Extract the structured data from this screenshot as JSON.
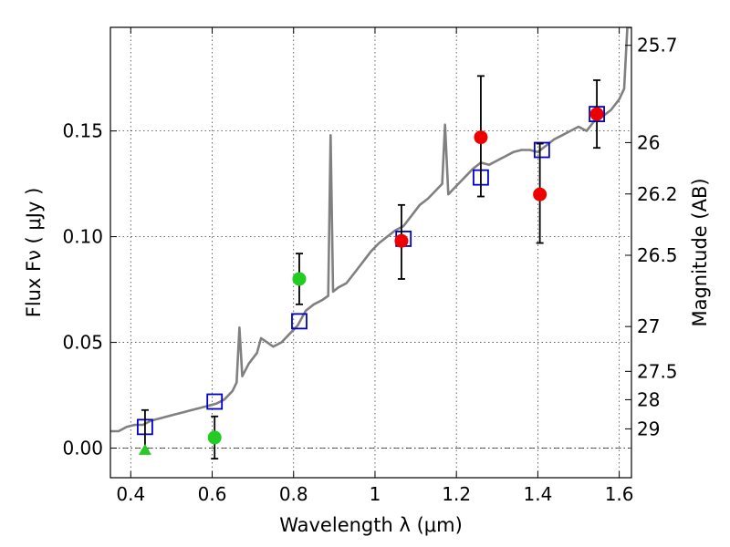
{
  "chart_data": {
    "type": "scatter",
    "xlabel": "Wavelength  λ (μm)",
    "ylabel": "Flux  Fν ( μJy )",
    "ylabel_right": "Magnitude (AB)",
    "xlim": [
      0.35,
      1.63
    ],
    "ylim": [
      -0.014,
      0.199
    ],
    "x_ticks": [
      0.4,
      0.6,
      0.8,
      1.0,
      1.2,
      1.4,
      1.6
    ],
    "x_tick_labels": [
      "0.4",
      "0.6",
      "0.8",
      "1",
      "1.2",
      "1.4",
      "1.6"
    ],
    "y_ticks": [
      0.0,
      0.05,
      0.1,
      0.15
    ],
    "y_tick_labels": [
      "0.00",
      "0.05",
      "0.10",
      "0.15"
    ],
    "right_ticks": [
      {
        "label": "25.7",
        "flux": 0.1905
      },
      {
        "label": "26",
        "flux": 0.1445
      },
      {
        "label": "26.2",
        "flux": 0.1202
      },
      {
        "label": "26.5",
        "flux": 0.0912
      },
      {
        "label": "27",
        "flux": 0.0575
      },
      {
        "label": "27.5",
        "flux": 0.0363
      },
      {
        "label": "28",
        "flux": 0.0229
      },
      {
        "label": "29",
        "flux": 0.0091
      }
    ],
    "grid": true,
    "colors": {
      "model": "#808080",
      "model_photometry": "#0000cc",
      "red_points": "#ee0000",
      "green_points": "#22cc22",
      "errorbar": "#000000",
      "zero_line": "#000000"
    },
    "series": [
      {
        "kind": "model-spectrum-line",
        "x": [
          0.35,
          0.37,
          0.39,
          0.41,
          0.43,
          0.45,
          0.47,
          0.49,
          0.51,
          0.53,
          0.55,
          0.57,
          0.59,
          0.61,
          0.63,
          0.65,
          0.66,
          0.667,
          0.674,
          0.69,
          0.71,
          0.72,
          0.75,
          0.77,
          0.79,
          0.81,
          0.83,
          0.85,
          0.87,
          0.885,
          0.891,
          0.897,
          0.91,
          0.93,
          0.95,
          0.97,
          0.99,
          1.01,
          1.03,
          1.05,
          1.07,
          1.09,
          1.11,
          1.13,
          1.15,
          1.165,
          1.172,
          1.18,
          1.2,
          1.22,
          1.24,
          1.26,
          1.28,
          1.3,
          1.32,
          1.34,
          1.36,
          1.38,
          1.4,
          1.42,
          1.44,
          1.46,
          1.48,
          1.5,
          1.52,
          1.54,
          1.56,
          1.58,
          1.6,
          1.612,
          1.62,
          1.63
        ],
        "y": [
          0.008,
          0.008,
          0.01,
          0.011,
          0.011,
          0.013,
          0.014,
          0.015,
          0.016,
          0.017,
          0.018,
          0.019,
          0.02,
          0.021,
          0.023,
          0.027,
          0.031,
          0.057,
          0.034,
          0.04,
          0.045,
          0.052,
          0.048,
          0.05,
          0.054,
          0.058,
          0.065,
          0.068,
          0.07,
          0.072,
          0.148,
          0.074,
          0.076,
          0.078,
          0.083,
          0.088,
          0.093,
          0.097,
          0.1,
          0.103,
          0.105,
          0.11,
          0.115,
          0.118,
          0.122,
          0.125,
          0.153,
          0.12,
          0.124,
          0.128,
          0.132,
          0.135,
          0.134,
          0.136,
          0.138,
          0.14,
          0.141,
          0.141,
          0.14,
          0.143,
          0.146,
          0.148,
          0.15,
          0.152,
          0.15,
          0.155,
          0.157,
          0.16,
          0.165,
          0.17,
          0.199,
          0.199
        ]
      },
      {
        "kind": "model-photometry-squares",
        "x": [
          0.435,
          0.606,
          0.814,
          1.07,
          1.26,
          1.41,
          1.545
        ],
        "y": [
          0.01,
          0.022,
          0.06,
          0.099,
          0.128,
          0.141,
          0.158
        ]
      },
      {
        "kind": "red-points",
        "x": [
          1.065,
          1.26,
          1.405,
          1.545
        ],
        "y": [
          0.098,
          0.147,
          0.12,
          0.158
        ],
        "yerr_low": [
          0.018,
          0.028,
          0.023,
          0.016
        ],
        "yerr_high": [
          0.017,
          0.029,
          0.024,
          0.016
        ]
      },
      {
        "kind": "green-points",
        "x": [
          0.606,
          0.814
        ],
        "y": [
          0.005,
          0.08
        ],
        "yerr_low": [
          0.01,
          0.012
        ],
        "yerr_high": [
          0.01,
          0.012
        ]
      },
      {
        "kind": "green-triangle",
        "x": [
          0.435
        ],
        "y": [
          -0.001
        ],
        "yerr_low": [
          0.0
        ],
        "yerr_high": [
          0.019
        ]
      }
    ]
  }
}
